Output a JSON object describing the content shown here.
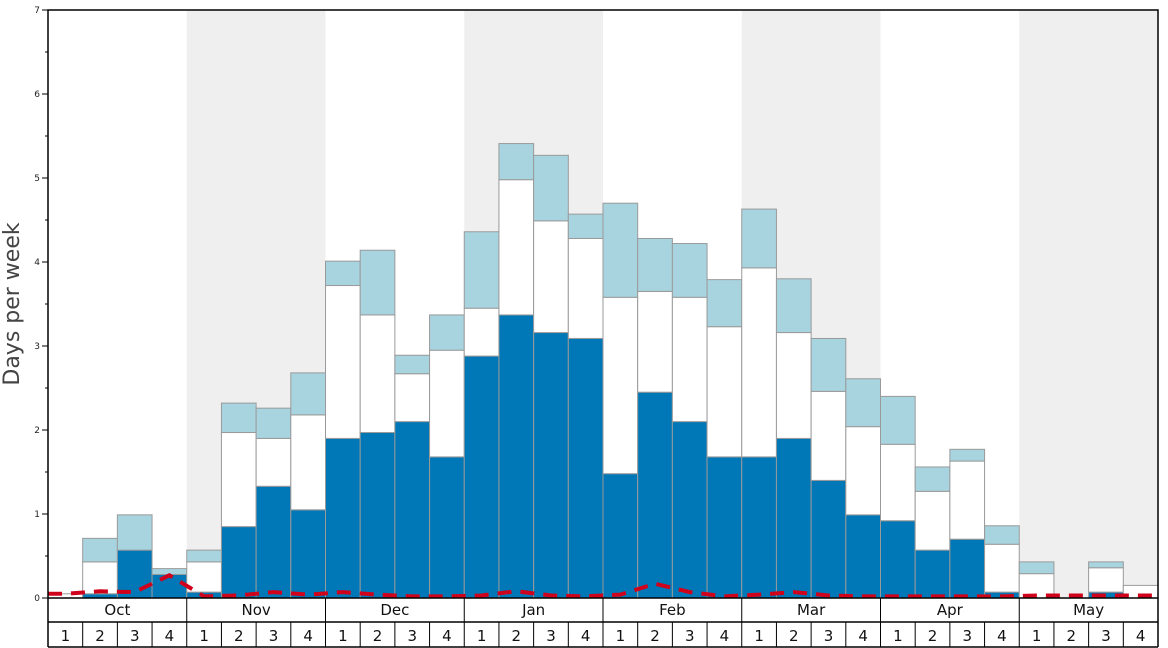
{
  "chart_data": {
    "type": "bar",
    "stacked": true,
    "ylabel": "Days per week",
    "ylim": [
      0,
      7
    ],
    "yticks": [
      0,
      1,
      2,
      3,
      4,
      5,
      6,
      7
    ],
    "months": [
      "Oct",
      "Nov",
      "Dec",
      "Jan",
      "Feb",
      "Mar",
      "Apr",
      "May"
    ],
    "week_labels": [
      "1",
      "2",
      "3",
      "4"
    ],
    "categories": [
      "Oct 1",
      "Oct 2",
      "Oct 3",
      "Oct 4",
      "Nov 1",
      "Nov 2",
      "Nov 3",
      "Nov 4",
      "Dec 1",
      "Dec 2",
      "Dec 3",
      "Dec 4",
      "Jan 1",
      "Jan 2",
      "Jan 3",
      "Jan 4",
      "Feb 1",
      "Feb 2",
      "Feb 3",
      "Feb 4",
      "Mar 1",
      "Mar 2",
      "Mar 3",
      "Mar 4",
      "Apr 1",
      "Apr 2",
      "Apr 3",
      "Apr 4",
      "May 1",
      "May 2",
      "May 3",
      "May 4"
    ],
    "series": [
      {
        "color": "#0077b6",
        "values": [
          0.0,
          0.05,
          0.57,
          0.28,
          0.07,
          0.85,
          1.33,
          1.05,
          1.9,
          1.97,
          2.1,
          1.68,
          2.88,
          3.37,
          3.16,
          3.09,
          1.48,
          2.45,
          2.1,
          1.68,
          1.68,
          1.9,
          1.4,
          0.99,
          0.92,
          0.57,
          0.7,
          0.07,
          0.0,
          0.0,
          0.07,
          0.0
        ]
      },
      {
        "color": "#ffffff",
        "values": [
          0.05,
          0.38,
          0.0,
          0.0,
          0.36,
          1.12,
          0.57,
          1.13,
          1.82,
          1.4,
          0.57,
          1.27,
          0.57,
          1.61,
          1.33,
          1.19,
          2.1,
          1.2,
          1.48,
          1.55,
          2.25,
          1.26,
          1.06,
          1.05,
          0.91,
          0.7,
          0.93,
          0.57,
          0.29,
          0.0,
          0.29,
          0.15
        ]
      },
      {
        "color": "#a8d4e0",
        "values": [
          0.0,
          0.28,
          0.42,
          0.07,
          0.14,
          0.35,
          0.36,
          0.5,
          0.29,
          0.77,
          0.22,
          0.42,
          0.91,
          0.43,
          0.78,
          0.29,
          1.12,
          0.63,
          0.64,
          0.56,
          0.7,
          0.64,
          0.63,
          0.57,
          0.57,
          0.29,
          0.14,
          0.22,
          0.14,
          0.0,
          0.07,
          0.0
        ]
      }
    ],
    "line_series": {
      "color": "#d0021b",
      "style": "dashed",
      "values": [
        0.05,
        0.08,
        0.07,
        0.27,
        0.02,
        0.03,
        0.07,
        0.04,
        0.07,
        0.04,
        0.02,
        0.02,
        0.03,
        0.08,
        0.03,
        0.02,
        0.04,
        0.17,
        0.07,
        0.02,
        0.04,
        0.07,
        0.03,
        0.02,
        0.02,
        0.02,
        0.02,
        0.02,
        0.03,
        0.03,
        0.03,
        0.03
      ]
    },
    "shaded_months": [
      "Nov",
      "Jan",
      "Mar",
      "May"
    ],
    "shade_color": "#efefef",
    "grid": false
  }
}
